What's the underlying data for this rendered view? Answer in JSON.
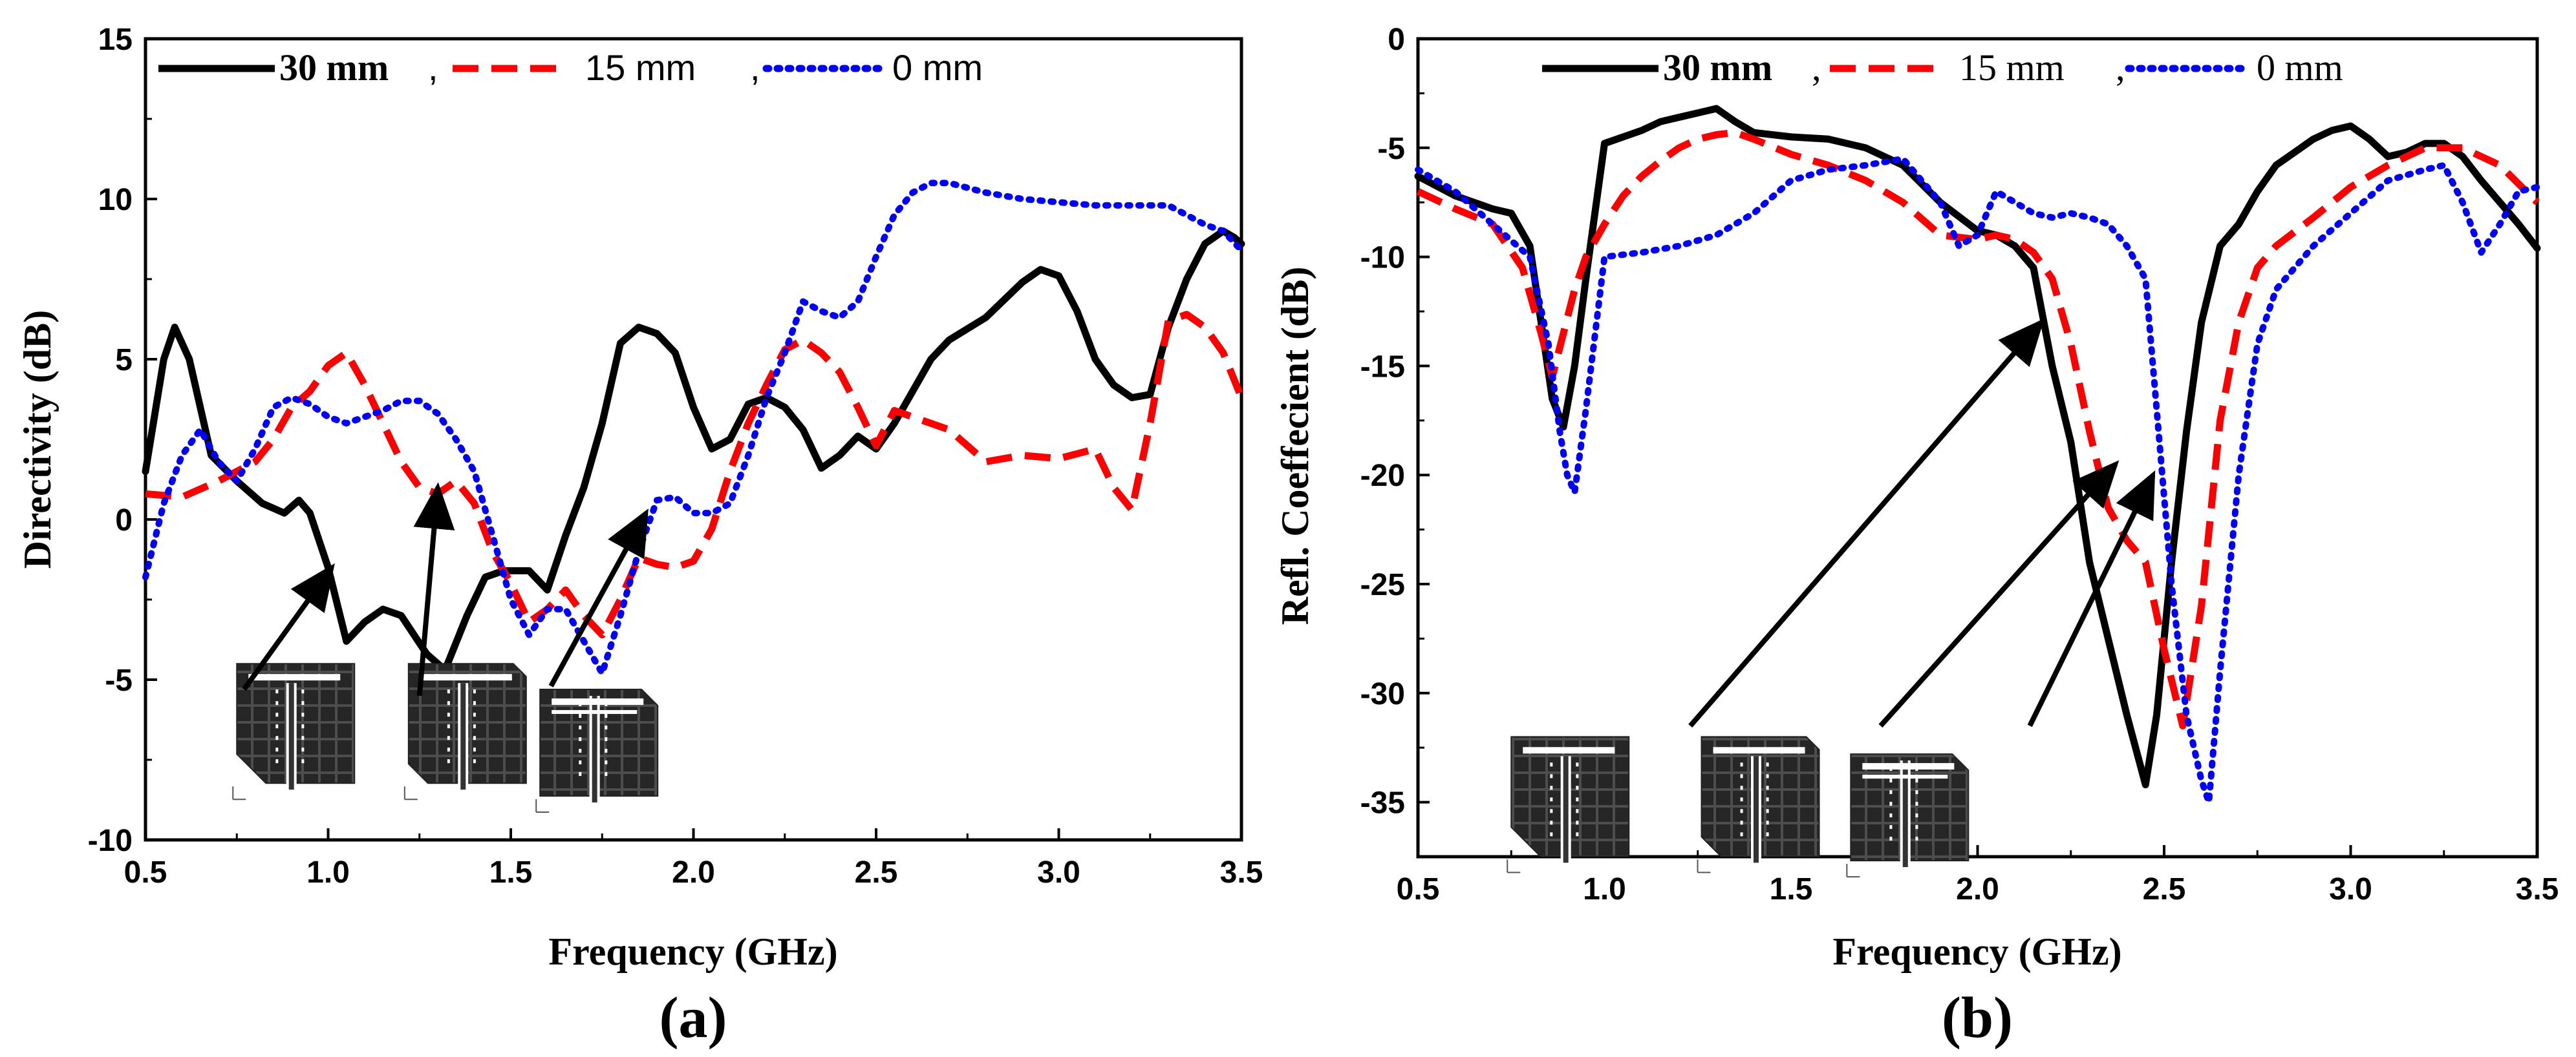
{
  "chart_data": [
    {
      "type": "line",
      "panel_label": "(a)",
      "xlabel": "Frequency (GHz)",
      "ylabel": "Directivity (dB)",
      "xlim": [
        0.5,
        3.5
      ],
      "ylim": [
        -10,
        15
      ],
      "xticks": [
        0.5,
        1.0,
        1.5,
        2.0,
        2.5,
        3.0,
        3.5
      ],
      "xtick_labels": [
        "0.5",
        "1.0",
        "1.5",
        "2.0",
        "2.5",
        "3.0",
        "3.5"
      ],
      "yticks": [
        -10,
        -5,
        0,
        5,
        10,
        15
      ],
      "ytick_labels": [
        "-10",
        "-5",
        "0",
        "5",
        "10",
        "15"
      ],
      "legend_position": "top-left",
      "series": [
        {
          "name": "30 mm",
          "legend_label": "30 mm",
          "legend_sep": ",",
          "color": "#000000",
          "style": "solid",
          "x": [
            0.5,
            0.55,
            0.58,
            0.62,
            0.68,
            0.75,
            0.82,
            0.88,
            0.92,
            0.95,
            1.0,
            1.05,
            1.1,
            1.15,
            1.2,
            1.27,
            1.32,
            1.38,
            1.43,
            1.48,
            1.55,
            1.6,
            1.65,
            1.7,
            1.75,
            1.8,
            1.85,
            1.9,
            1.95,
            2.0,
            2.05,
            2.1,
            2.15,
            2.2,
            2.25,
            2.3,
            2.35,
            2.4,
            2.45,
            2.5,
            2.55,
            2.6,
            2.65,
            2.7,
            2.8,
            2.9,
            2.95,
            3.0,
            3.05,
            3.1,
            3.15,
            3.2,
            3.25,
            3.3,
            3.35,
            3.4,
            3.45,
            3.48,
            3.5
          ],
          "y": [
            1.5,
            5.0,
            6.0,
            5.0,
            2.0,
            1.2,
            0.5,
            0.2,
            0.6,
            0.2,
            -1.5,
            -3.8,
            -3.2,
            -2.8,
            -3.0,
            -4.2,
            -4.7,
            -3.0,
            -1.8,
            -1.6,
            -1.6,
            -2.2,
            -0.5,
            1.0,
            3.0,
            5.5,
            6.0,
            5.8,
            5.2,
            3.5,
            2.2,
            2.5,
            3.6,
            3.8,
            3.5,
            2.8,
            1.6,
            2.0,
            2.6,
            2.2,
            3.0,
            4.0,
            5.0,
            5.6,
            6.3,
            7.4,
            7.8,
            7.6,
            6.5,
            5.0,
            4.2,
            3.8,
            3.9,
            6.0,
            7.5,
            8.6,
            9.0,
            8.8,
            8.6
          ]
        },
        {
          "name": "15 mm",
          "legend_label": "15 mm",
          "legend_sep": ",",
          "color": "#ff0000",
          "style": "dashed",
          "x": [
            0.5,
            0.6,
            0.7,
            0.8,
            0.85,
            0.9,
            0.95,
            1.0,
            1.05,
            1.1,
            1.15,
            1.2,
            1.25,
            1.3,
            1.35,
            1.4,
            1.45,
            1.5,
            1.55,
            1.6,
            1.65,
            1.7,
            1.75,
            1.8,
            1.85,
            1.9,
            1.95,
            2.0,
            2.05,
            2.1,
            2.15,
            2.2,
            2.25,
            2.3,
            2.35,
            2.4,
            2.45,
            2.5,
            2.55,
            2.6,
            2.7,
            2.8,
            2.9,
            3.0,
            3.1,
            3.15,
            3.2,
            3.25,
            3.3,
            3.35,
            3.4,
            3.45,
            3.5
          ],
          "y": [
            0.8,
            0.7,
            1.2,
            1.8,
            2.5,
            3.5,
            4.0,
            4.8,
            5.2,
            4.2,
            3.0,
            1.8,
            1.0,
            0.8,
            1.2,
            0.5,
            -1.0,
            -2.0,
            -3.2,
            -2.8,
            -2.2,
            -3.0,
            -3.6,
            -2.5,
            -1.2,
            -1.4,
            -1.5,
            -1.3,
            -0.3,
            1.5,
            3.0,
            4.2,
            5.3,
            5.6,
            5.2,
            4.6,
            3.5,
            2.3,
            3.4,
            3.2,
            2.8,
            1.8,
            2.0,
            1.9,
            2.2,
            1.0,
            0.3,
            3.0,
            6.2,
            6.4,
            6.0,
            5.2,
            3.8
          ]
        },
        {
          "name": "0 mm",
          "legend_label": "0 mm",
          "legend_sep": "",
          "color": "#0000ff",
          "style": "dotted",
          "x": [
            0.5,
            0.55,
            0.6,
            0.65,
            0.7,
            0.75,
            0.8,
            0.85,
            0.9,
            0.95,
            1.0,
            1.05,
            1.1,
            1.15,
            1.2,
            1.25,
            1.3,
            1.35,
            1.4,
            1.45,
            1.5,
            1.55,
            1.6,
            1.65,
            1.7,
            1.75,
            1.8,
            1.85,
            1.9,
            1.95,
            2.0,
            2.05,
            2.1,
            2.15,
            2.2,
            2.25,
            2.3,
            2.35,
            2.4,
            2.45,
            2.5,
            2.55,
            2.6,
            2.65,
            2.7,
            2.8,
            2.9,
            3.0,
            3.1,
            3.2,
            3.3,
            3.35,
            3.4,
            3.45,
            3.5
          ],
          "y": [
            -1.8,
            0.5,
            2.0,
            2.8,
            1.8,
            1.2,
            2.2,
            3.5,
            3.8,
            3.6,
            3.2,
            3.0,
            3.2,
            3.4,
            3.7,
            3.7,
            3.3,
            2.5,
            1.5,
            -0.5,
            -2.5,
            -3.6,
            -2.8,
            -2.8,
            -3.8,
            -4.8,
            -3.0,
            -1.0,
            0.6,
            0.7,
            0.2,
            0.2,
            0.5,
            2.0,
            3.8,
            5.2,
            6.8,
            6.5,
            6.3,
            6.8,
            8.2,
            9.5,
            10.2,
            10.5,
            10.5,
            10.2,
            10.0,
            9.9,
            9.8,
            9.8,
            9.8,
            9.5,
            9.2,
            9.0,
            8.4
          ]
        }
      ],
      "annotations": [
        {
          "type": "arrow",
          "from": [
            0.77,
            -5.3
          ],
          "to": [
            1.01,
            -1.5
          ]
        },
        {
          "type": "arrow",
          "from": [
            1.25,
            -5.5
          ],
          "to": [
            1.3,
            1.0
          ]
        },
        {
          "type": "arrow",
          "from": [
            1.61,
            -5.2
          ],
          "to": [
            1.87,
            0.2
          ]
        }
      ],
      "insets": [
        {
          "name": "antenna-30mm-thumbnail",
          "at": [
            0.75,
            -4.5
          ]
        },
        {
          "name": "antenna-15mm-thumbnail",
          "at": [
            1.22,
            -4.5
          ]
        },
        {
          "name": "antenna-0mm-thumbnail",
          "at": [
            1.58,
            -4.9
          ]
        }
      ]
    },
    {
      "type": "line",
      "panel_label": "(b)",
      "xlabel": "Frequency (GHz)",
      "ylabel": "Refl. Coeffecient (dB)",
      "xlim": [
        0.5,
        3.5
      ],
      "ylim": [
        -37.5,
        0
      ],
      "xticks": [
        0.5,
        1.0,
        1.5,
        2.0,
        2.5,
        3.0,
        3.5
      ],
      "xtick_labels": [
        "0.5",
        "1.0",
        "1.5",
        "2.0",
        "2.5",
        "3.0",
        "3.5"
      ],
      "yticks": [
        -35,
        -30,
        -25,
        -20,
        -15,
        -10,
        -5,
        0
      ],
      "ytick_labels": [
        "-35",
        "-30",
        "-25",
        "-20",
        "-15",
        "-10",
        "-5",
        "0"
      ],
      "legend_position": "top",
      "series": [
        {
          "name": "30 mm",
          "legend_label": "30 mm",
          "legend_sep": ",",
          "color": "#000000",
          "style": "solid",
          "x": [
            0.5,
            0.6,
            0.7,
            0.75,
            0.8,
            0.83,
            0.86,
            0.89,
            0.92,
            0.95,
            1.0,
            1.05,
            1.1,
            1.15,
            1.2,
            1.25,
            1.3,
            1.35,
            1.4,
            1.5,
            1.6,
            1.7,
            1.8,
            1.9,
            2.0,
            2.05,
            2.1,
            2.15,
            2.2,
            2.25,
            2.3,
            2.35,
            2.4,
            2.45,
            2.48,
            2.52,
            2.56,
            2.6,
            2.65,
            2.7,
            2.75,
            2.8,
            2.85,
            2.9,
            2.95,
            3.0,
            3.05,
            3.1,
            3.15,
            3.2,
            3.25,
            3.3,
            3.35,
            3.4,
            3.45,
            3.5
          ],
          "y": [
            -6.3,
            -7.2,
            -7.8,
            -8.0,
            -9.5,
            -13.0,
            -16.5,
            -17.8,
            -15.0,
            -11.0,
            -4.8,
            -4.5,
            -4.2,
            -3.8,
            -3.6,
            -3.4,
            -3.2,
            -3.8,
            -4.3,
            -4.5,
            -4.6,
            -5.0,
            -5.8,
            -7.5,
            -8.8,
            -9.0,
            -9.5,
            -10.5,
            -15.0,
            -18.5,
            -24.0,
            -27.5,
            -31.0,
            -34.2,
            -31.0,
            -24.0,
            -18.0,
            -13.0,
            -9.5,
            -8.5,
            -7.0,
            -5.8,
            -5.2,
            -4.6,
            -4.2,
            -4.0,
            -4.6,
            -5.4,
            -5.2,
            -4.8,
            -4.8,
            -5.4,
            -6.5,
            -7.5,
            -8.5,
            -9.6
          ]
        },
        {
          "name": "15 mm",
          "legend_label": "15 mm",
          "legend_sep": ",",
          "color": "#ff0000",
          "style": "dashed",
          "x": [
            0.5,
            0.6,
            0.7,
            0.78,
            0.83,
            0.86,
            0.89,
            0.92,
            0.95,
            1.0,
            1.05,
            1.1,
            1.15,
            1.2,
            1.25,
            1.3,
            1.35,
            1.4,
            1.5,
            1.6,
            1.7,
            1.8,
            1.9,
            2.0,
            2.05,
            2.1,
            2.15,
            2.2,
            2.25,
            2.3,
            2.35,
            2.4,
            2.45,
            2.5,
            2.55,
            2.6,
            2.65,
            2.7,
            2.75,
            2.8,
            2.9,
            3.0,
            3.1,
            3.2,
            3.3,
            3.4,
            3.5
          ],
          "y": [
            -7.0,
            -7.8,
            -8.5,
            -10.5,
            -13.5,
            -15.5,
            -13.5,
            -11.5,
            -10.0,
            -8.5,
            -7.2,
            -6.3,
            -5.6,
            -5.0,
            -4.6,
            -4.4,
            -4.3,
            -4.6,
            -5.3,
            -5.8,
            -6.5,
            -7.5,
            -9.0,
            -9.2,
            -9.0,
            -9.2,
            -9.8,
            -11.0,
            -14.0,
            -18.0,
            -21.5,
            -23.0,
            -24.0,
            -28.0,
            -31.5,
            -26.0,
            -17.5,
            -13.0,
            -10.5,
            -9.5,
            -8.2,
            -6.8,
            -5.8,
            -5.0,
            -5.0,
            -5.8,
            -7.5
          ]
        },
        {
          "name": "0 mm",
          "legend_label": "0 mm",
          "legend_sep": "",
          "color": "#0000ff",
          "style": "dotted",
          "x": [
            0.5,
            0.6,
            0.7,
            0.8,
            0.85,
            0.88,
            0.9,
            0.92,
            0.95,
            1.0,
            1.1,
            1.2,
            1.3,
            1.4,
            1.5,
            1.6,
            1.7,
            1.8,
            1.9,
            1.95,
            2.0,
            2.05,
            2.1,
            2.15,
            2.2,
            2.25,
            2.3,
            2.35,
            2.4,
            2.45,
            2.48,
            2.52,
            2.56,
            2.6,
            2.62,
            2.65,
            2.7,
            2.75,
            2.8,
            2.9,
            3.0,
            3.1,
            3.2,
            3.25,
            3.3,
            3.35,
            3.4,
            3.45,
            3.5
          ],
          "y": [
            -6.0,
            -7.0,
            -8.5,
            -10.0,
            -14.0,
            -18.0,
            -20.0,
            -20.8,
            -17.0,
            -10.0,
            -9.8,
            -9.5,
            -9.0,
            -8.0,
            -6.5,
            -6.0,
            -5.8,
            -5.5,
            -7.5,
            -9.5,
            -9.0,
            -7.0,
            -7.5,
            -8.0,
            -8.2,
            -8.0,
            -8.2,
            -8.5,
            -9.5,
            -11.0,
            -17.0,
            -25.0,
            -31.0,
            -34.0,
            -35.0,
            -29.0,
            -20.0,
            -14.0,
            -11.5,
            -9.5,
            -8.0,
            -6.5,
            -6.0,
            -5.8,
            -7.5,
            -9.8,
            -8.5,
            -7.0,
            -6.8
          ]
        }
      ],
      "annotations": [
        {
          "type": "arrow",
          "from": [
            1.23,
            -31.5
          ],
          "to": [
            2.17,
            -13.0
          ]
        },
        {
          "type": "arrow",
          "from": [
            1.74,
            -31.5
          ],
          "to": [
            2.37,
            -19.5
          ]
        },
        {
          "type": "arrow",
          "from": [
            2.14,
            -31.5
          ],
          "to": [
            2.47,
            -20.0
          ]
        }
      ],
      "insets": [
        {
          "name": "antenna-30mm-thumbnail",
          "at": [
            0.75,
            -32.0
          ]
        },
        {
          "name": "antenna-15mm-thumbnail",
          "at": [
            1.26,
            -32.0
          ]
        },
        {
          "name": "antenna-0mm-thumbnail",
          "at": [
            1.66,
            -32.2
          ]
        }
      ]
    }
  ]
}
